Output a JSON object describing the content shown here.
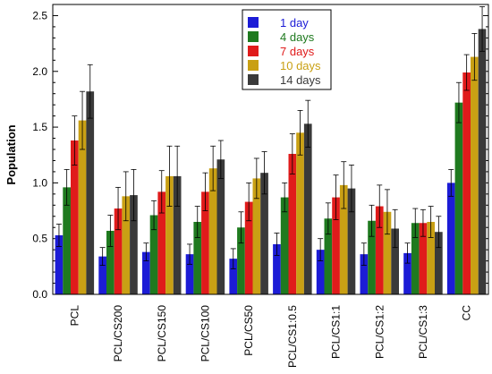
{
  "chart_data": {
    "type": "bar",
    "title": "",
    "xlabel": "",
    "ylabel": "Population",
    "ylim": [
      0,
      2.6
    ],
    "yticks": [
      "0.0",
      "0.5",
      "1.0",
      "1.5",
      "2.0",
      "2.5"
    ],
    "grid": false,
    "legend_position": "top-center",
    "categories": [
      "PCL",
      "PCL/CS200",
      "PCL/CS150",
      "PCL/CS100",
      "PCL/CS50",
      "PCL/CS1:0.5",
      "PCL/CS1:1",
      "PCL/CS1:2",
      "PCL/CS1:3",
      "CC"
    ],
    "series": [
      {
        "name": "1 day",
        "color": "#1c1cd6",
        "values": [
          0.53,
          0.34,
          0.38,
          0.36,
          0.32,
          0.45,
          0.4,
          0.36,
          0.37,
          1.0
        ],
        "errors": [
          0.1,
          0.08,
          0.08,
          0.09,
          0.09,
          0.1,
          0.1,
          0.1,
          0.09,
          0.12
        ]
      },
      {
        "name": "4 days",
        "color": "#1f7a1f",
        "values": [
          0.96,
          0.57,
          0.71,
          0.65,
          0.6,
          0.87,
          0.68,
          0.66,
          0.64,
          1.72
        ],
        "errors": [
          0.16,
          0.14,
          0.13,
          0.14,
          0.14,
          0.13,
          0.14,
          0.14,
          0.13,
          0.18
        ]
      },
      {
        "name": "7 days",
        "color": "#e01b1b",
        "values": [
          1.38,
          0.77,
          0.92,
          0.92,
          0.83,
          1.26,
          0.87,
          0.79,
          0.64,
          1.99
        ],
        "errors": [
          0.22,
          0.19,
          0.19,
          0.17,
          0.17,
          0.18,
          0.2,
          0.19,
          0.12,
          0.16
        ]
      },
      {
        "name": "10 days",
        "color": "#c9a014",
        "values": [
          1.56,
          0.88,
          1.06,
          1.13,
          1.04,
          1.45,
          0.98,
          0.74,
          0.65,
          2.13
        ],
        "errors": [
          0.26,
          0.22,
          0.27,
          0.2,
          0.18,
          0.2,
          0.21,
          0.2,
          0.14,
          0.21
        ]
      },
      {
        "name": "14 days",
        "color": "#3a3a3a",
        "values": [
          1.82,
          0.89,
          1.06,
          1.21,
          1.09,
          1.53,
          0.95,
          0.59,
          0.56,
          2.38
        ],
        "errors": [
          0.24,
          0.23,
          0.27,
          0.17,
          0.19,
          0.21,
          0.21,
          0.17,
          0.14,
          0.2
        ]
      }
    ]
  }
}
